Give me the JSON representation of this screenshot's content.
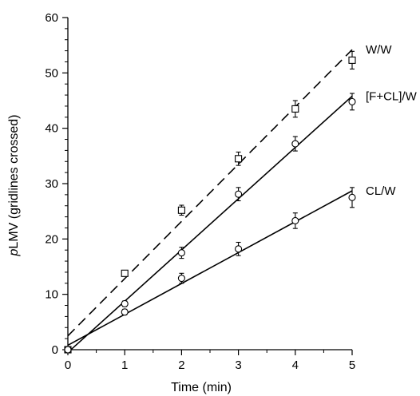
{
  "chart_data": {
    "type": "scatter",
    "xlabel": "Time (min)",
    "ylabel_prefix": "p",
    "ylabel_rest": "LMV (gridlines crossed)",
    "xlim": [
      0,
      5
    ],
    "ylim": [
      0,
      60
    ],
    "x_ticks": [
      "0",
      "1",
      "2",
      "3",
      "4",
      "5"
    ],
    "y_ticks": [
      "0",
      "10",
      "20",
      "30",
      "40",
      "50",
      "60"
    ],
    "series": [
      {
        "name": "W/W",
        "marker": "square",
        "line_style": "dashed",
        "x": [
          0,
          1,
          2,
          3,
          4,
          5
        ],
        "y": [
          0,
          13.8,
          25.2,
          34.5,
          43.5,
          52.3
        ],
        "error": [
          0,
          0.5,
          0.9,
          1.2,
          1.5,
          1.6
        ],
        "fit": {
          "x": [
            0,
            5
          ],
          "y": [
            2.5,
            54.2
          ]
        }
      },
      {
        "name": "[F+CL]/W",
        "marker": "circle",
        "line_style": "solid",
        "x": [
          0,
          1,
          2,
          3,
          4,
          5
        ],
        "y": [
          0,
          8.3,
          17.5,
          28.1,
          37.2,
          44.8
        ],
        "error": [
          0,
          0.5,
          1.0,
          1.2,
          1.3,
          1.5
        ],
        "fit": {
          "x": [
            0,
            5
          ],
          "y": [
            -0.5,
            45.8
          ]
        }
      },
      {
        "name": "CL/W",
        "marker": "circle",
        "line_style": "solid",
        "x": [
          0,
          1,
          2,
          3,
          4,
          5
        ],
        "y": [
          0,
          6.8,
          12.9,
          18.2,
          23.3,
          27.5
        ],
        "error": [
          0,
          0.5,
          0.9,
          1.2,
          1.4,
          1.8
        ],
        "fit": {
          "x": [
            0,
            5
          ],
          "y": [
            0.8,
            28.7
          ]
        }
      }
    ]
  }
}
